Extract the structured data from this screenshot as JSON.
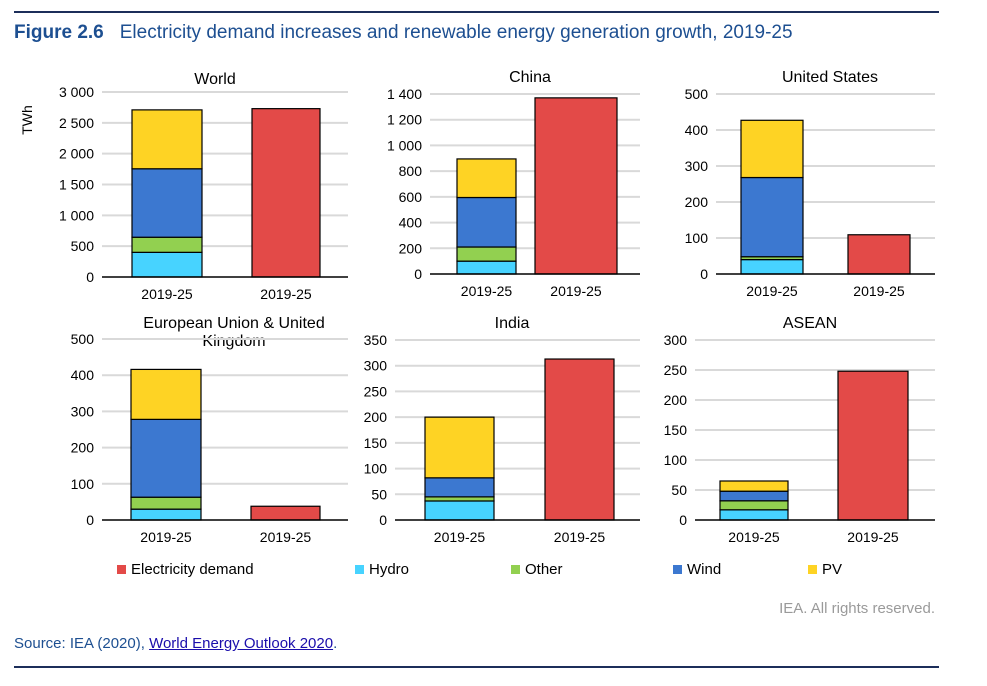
{
  "header": {
    "figure_number": "Figure 2.6",
    "title": "Electricity demand increases and renewable energy generation growth, 2019-25"
  },
  "footer": {
    "copyright": "IEA. All rights reserved.",
    "source_prefix": "Source: IEA (2020), ",
    "source_link": "World Energy Outlook 2020",
    "source_suffix": "."
  },
  "chart_data": {
    "type": "bar",
    "ylabel": "TWh",
    "categories": [
      "2019-25",
      "2019-25"
    ],
    "legend": [
      {
        "name": "Electricity demand",
        "color": "#e34a48"
      },
      {
        "name": "Hydro",
        "color": "#47d3ff"
      },
      {
        "name": "Other",
        "color": "#92d050"
      },
      {
        "name": "Wind",
        "color": "#3c78d0"
      },
      {
        "name": "PV",
        "color": "#fed324"
      }
    ],
    "legend_placement": "bottom",
    "grid": true,
    "panels": [
      {
        "title": "World",
        "ylim": [
          0,
          3000
        ],
        "ticks": [
          "0",
          "500",
          "1 000",
          "1 500",
          "2 000",
          "2 500",
          "3 000"
        ],
        "tick_step": 500,
        "stack": {
          "Hydro": 400,
          "Other": 245,
          "Wind": 1110,
          "PV": 955
        },
        "demand": 2730
      },
      {
        "title": "China",
        "ylim": [
          0,
          1400
        ],
        "ticks": [
          "0",
          "200",
          "400",
          "600",
          "800",
          "1 000",
          "1 200",
          "1 400"
        ],
        "tick_step": 200,
        "stack": {
          "Hydro": 100,
          "Other": 110,
          "Wind": 385,
          "PV": 300
        },
        "demand": 1370
      },
      {
        "title": "United States",
        "ylim": [
          0,
          500
        ],
        "ticks": [
          "0",
          "100",
          "200",
          "300",
          "400",
          "500"
        ],
        "tick_step": 100,
        "stack": {
          "Hydro": 40,
          "Other": 8,
          "Wind": 220,
          "PV": 159
        },
        "demand": 109
      },
      {
        "title": "European Union & United Kingdom",
        "ylim": [
          0,
          500
        ],
        "ticks": [
          "0",
          "100",
          "200",
          "300",
          "400",
          "500"
        ],
        "tick_step": 100,
        "stack": {
          "Hydro": 30,
          "Other": 33,
          "Wind": 215,
          "PV": 138
        },
        "demand": 38
      },
      {
        "title": "India",
        "ylim": [
          0,
          350
        ],
        "ticks": [
          "0",
          "50",
          "100",
          "150",
          "200",
          "250",
          "300",
          "350"
        ],
        "tick_step": 50,
        "stack": {
          "Hydro": 37,
          "Other": 8,
          "Wind": 37,
          "PV": 118
        },
        "demand": 313
      },
      {
        "title": "ASEAN",
        "ylim": [
          0,
          300
        ],
        "ticks": [
          "0",
          "50",
          "100",
          "150",
          "200",
          "250",
          "300"
        ],
        "tick_step": 50,
        "stack": {
          "Hydro": 17,
          "Other": 15,
          "Wind": 16,
          "PV": 17
        },
        "demand": 248
      }
    ]
  }
}
